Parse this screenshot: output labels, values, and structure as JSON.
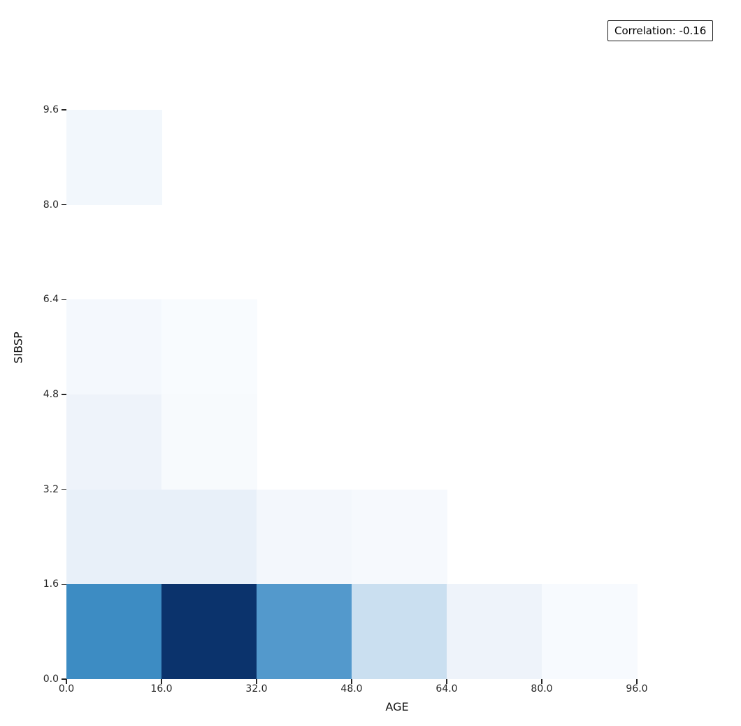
{
  "annotation": {
    "label": "Correlation: -0.16"
  },
  "chart_data": {
    "type": "heatmap",
    "title": "",
    "xlabel": "AGE",
    "ylabel": "SIBSP",
    "colormap": "Blues",
    "background": "#ffffff",
    "grid": false,
    "x_range": [
      0,
      96
    ],
    "y_range": [
      0,
      9.6
    ],
    "x_tick_labels": [
      "0.0",
      "16.0",
      "32.0",
      "48.0",
      "64.0",
      "80.0",
      "96.0"
    ],
    "y_tick_labels_top_to_bottom": [
      "9.6",
      "8.0",
      "6.4",
      "4.8",
      "3.2",
      "1.6",
      "0.0"
    ],
    "x_bin_edges": [
      0,
      16,
      32,
      48,
      64,
      80,
      96
    ],
    "y_bin_edges": [
      0,
      1.6,
      3.2,
      4.8,
      6.4,
      8.0,
      9.6
    ],
    "age_bins_left_to_right": [
      "0-16",
      "16-32",
      "32-48",
      "48-64",
      "64-80",
      "80-96"
    ],
    "empty_bin_color": null,
    "rows_top_to_bottom": [
      {
        "sibsp_bin": "8.0-9.6",
        "colors": [
          "#f2f7fc",
          null,
          null,
          null,
          null,
          null
        ],
        "relative_density": [
          0.05,
          0,
          0,
          0,
          0,
          0
        ]
      },
      {
        "sibsp_bin": "6.4-8.0",
        "colors": [
          null,
          null,
          null,
          null,
          null,
          null
        ],
        "relative_density": [
          0,
          0,
          0,
          0,
          0,
          0
        ]
      },
      {
        "sibsp_bin": "4.8-6.4",
        "colors": [
          "#f4f8fd",
          "#f8fbfe",
          null,
          null,
          null,
          null
        ],
        "relative_density": [
          0.04,
          0.01,
          0,
          0,
          0,
          0
        ]
      },
      {
        "sibsp_bin": "3.2-4.8",
        "colors": [
          "#eef3fa",
          "#f7fafd",
          null,
          null,
          null,
          null
        ],
        "relative_density": [
          0.07,
          0.02,
          0,
          0,
          0,
          0
        ]
      },
      {
        "sibsp_bin": "1.6-3.2",
        "colors": [
          "#e8f0f9",
          "#e8f0f9",
          "#f3f7fc",
          "#f6f9fd",
          null,
          null
        ],
        "relative_density": [
          0.12,
          0.12,
          0.04,
          0.03,
          0,
          0
        ]
      },
      {
        "sibsp_bin": "0.0-1.6",
        "colors": [
          "#3d8cc3",
          "#0b336c",
          "#5399cc",
          "#cadff0",
          "#eef3fa",
          "#f7fafe"
        ],
        "relative_density": [
          0.63,
          1.0,
          0.57,
          0.25,
          0.08,
          0.02
        ]
      }
    ],
    "max_density_color": "#0b336c",
    "legend": "none"
  }
}
